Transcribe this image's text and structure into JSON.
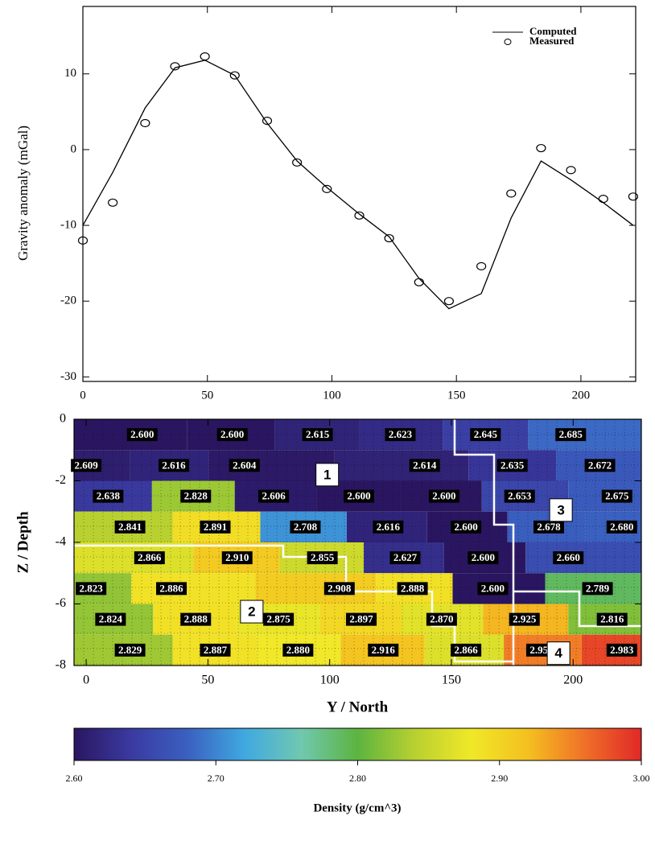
{
  "chart_data": [
    {
      "type": "line",
      "ylabel": "Gravity anomaly (mGal)",
      "xlim": [
        0,
        222
      ],
      "ylim": [
        -30.6,
        18.9
      ],
      "xticks": [
        0,
        50,
        100,
        150,
        200
      ],
      "yticks": [
        -30,
        -20,
        -10,
        0,
        10
      ],
      "legend": "upper right",
      "series": [
        {
          "name": "Computed",
          "type": "line",
          "color": "#000000",
          "x": [
            0,
            12,
            25,
            37,
            49,
            61,
            74,
            86,
            98,
            111,
            123,
            135,
            147,
            160,
            172,
            184,
            196,
            209,
            221
          ],
          "values": [
            -10,
            -3,
            5.5,
            10.8,
            11.8,
            9.8,
            3.5,
            -1.5,
            -5,
            -8.5,
            -11.5,
            -17,
            -21,
            -19,
            -9,
            -1.5,
            -4,
            -7,
            -10
          ]
        },
        {
          "name": "Measured",
          "type": "scatter",
          "color": "#000000",
          "x": [
            0,
            12,
            25,
            37,
            49,
            61,
            74,
            86,
            98,
            111,
            123,
            135,
            147,
            160,
            172,
            184,
            196,
            209,
            221
          ],
          "values": [
            -12,
            -7,
            3.5,
            11,
            12.3,
            9.8,
            3.8,
            -1.7,
            -5.2,
            -8.7,
            -11.7,
            -17.5,
            -20,
            -15.4,
            -5.8,
            0.2,
            -2.7,
            -6.5,
            -6.2
          ]
        }
      ]
    },
    {
      "type": "heatmap",
      "xlabel": "Y / North",
      "ylabel": "Z / Depth",
      "xlim": [
        -5,
        228
      ],
      "ylim": [
        -8,
        0
      ],
      "xticks": [
        0,
        50,
        100,
        150,
        200
      ],
      "yticks": [
        0,
        -2,
        -4,
        -6,
        -8
      ],
      "rows": [
        {
          "depth": -0.5,
          "x": [
            23,
            60,
            95,
            129,
            164,
            199
          ],
          "values": [
            2.6,
            2.6,
            2.615,
            2.623,
            2.645,
            2.685
          ],
          "value_labels": [
            "2.600",
            "2.600",
            "2.615",
            "2.623",
            "2.645",
            "2.685"
          ]
        },
        {
          "depth": -1.5,
          "x": [
            0,
            36,
            65,
            139,
            175,
            211
          ],
          "values": [
            2.609,
            2.616,
            2.604,
            2.614,
            2.635,
            2.672
          ],
          "value_labels": [
            "2.609",
            "2.616",
            "2.604",
            "2.614",
            "2.635",
            "2.672"
          ]
        },
        {
          "depth": -2.5,
          "x": [
            9,
            45,
            77,
            112,
            147,
            178,
            218
          ],
          "values": [
            2.638,
            2.828,
            2.606,
            2.6,
            2.6,
            2.653,
            2.675
          ],
          "value_labels": [
            "2.638",
            "2.828",
            "2.606",
            "2.600",
            "2.600",
            "2.653",
            "2.675"
          ]
        },
        {
          "depth": -3.5,
          "x": [
            18,
            53,
            90,
            124,
            156,
            190,
            220
          ],
          "values": [
            2.841,
            2.891,
            2.708,
            2.616,
            2.6,
            2.678,
            2.68
          ],
          "value_labels": [
            "2.841",
            "2.891",
            "2.708",
            "2.616",
            "2.600",
            "2.678",
            "2.680"
          ]
        },
        {
          "depth": -4.5,
          "x": [
            26,
            62,
            97,
            131,
            163,
            198
          ],
          "values": [
            2.866,
            2.91,
            2.855,
            2.627,
            2.6,
            2.66
          ],
          "value_labels": [
            "2.866",
            "2.910",
            "2.855",
            "2.627",
            "2.600",
            "2.660"
          ]
        },
        {
          "depth": -5.5,
          "x": [
            2,
            35,
            104,
            134,
            167,
            210
          ],
          "values": [
            2.823,
            2.886,
            2.908,
            2.888,
            2.6,
            2.789
          ],
          "value_labels": [
            "2.823",
            "2.886",
            "2.908",
            "2.888",
            "2.600",
            "2.789"
          ]
        },
        {
          "depth": -6.5,
          "x": [
            10,
            45,
            79,
            113,
            146,
            180,
            216
          ],
          "values": [
            2.824,
            2.888,
            2.875,
            2.897,
            2.87,
            2.925,
            2.816
          ],
          "value_labels": [
            "2.824",
            "2.888",
            "2.875",
            "2.897",
            "2.870",
            "2.925",
            "2.816"
          ]
        },
        {
          "depth": -7.5,
          "x": [
            18,
            53,
            87,
            122,
            156,
            187,
            220
          ],
          "values": [
            2.829,
            2.887,
            2.88,
            2.916,
            2.866,
            2.953,
            2.983
          ],
          "value_labels": [
            "2.829",
            "2.887",
            "2.880",
            "2.916",
            "2.866",
            "2.953",
            "2.983"
          ]
        }
      ],
      "annotations": [
        {
          "text": "1",
          "x": 99,
          "y": -1.8
        },
        {
          "text": "2",
          "x": 68,
          "y": -6.25
        },
        {
          "text": "3",
          "x": 195,
          "y": -2.95
        },
        {
          "text": "4",
          "x": 194,
          "y": -7.6
        }
      ]
    },
    {
      "type": "colorbar",
      "label": "Density (g/cm^3)",
      "clim": [
        2.6,
        3.0
      ],
      "ticks": [
        {
          "value": 2.6,
          "label": "2.60"
        },
        {
          "value": 2.7,
          "label": "2.70"
        },
        {
          "value": 2.8,
          "label": "2.80"
        },
        {
          "value": 2.9,
          "label": "2.90"
        },
        {
          "value": 3.0,
          "label": "3.00"
        }
      ],
      "colors": [
        "#2a1660",
        "#3a3aa0",
        "#3a60c0",
        "#40a8e0",
        "#70c8b0",
        "#5cb440",
        "#b8d030",
        "#f0e828",
        "#f4c020",
        "#f07028",
        "#e02828"
      ]
    }
  ]
}
